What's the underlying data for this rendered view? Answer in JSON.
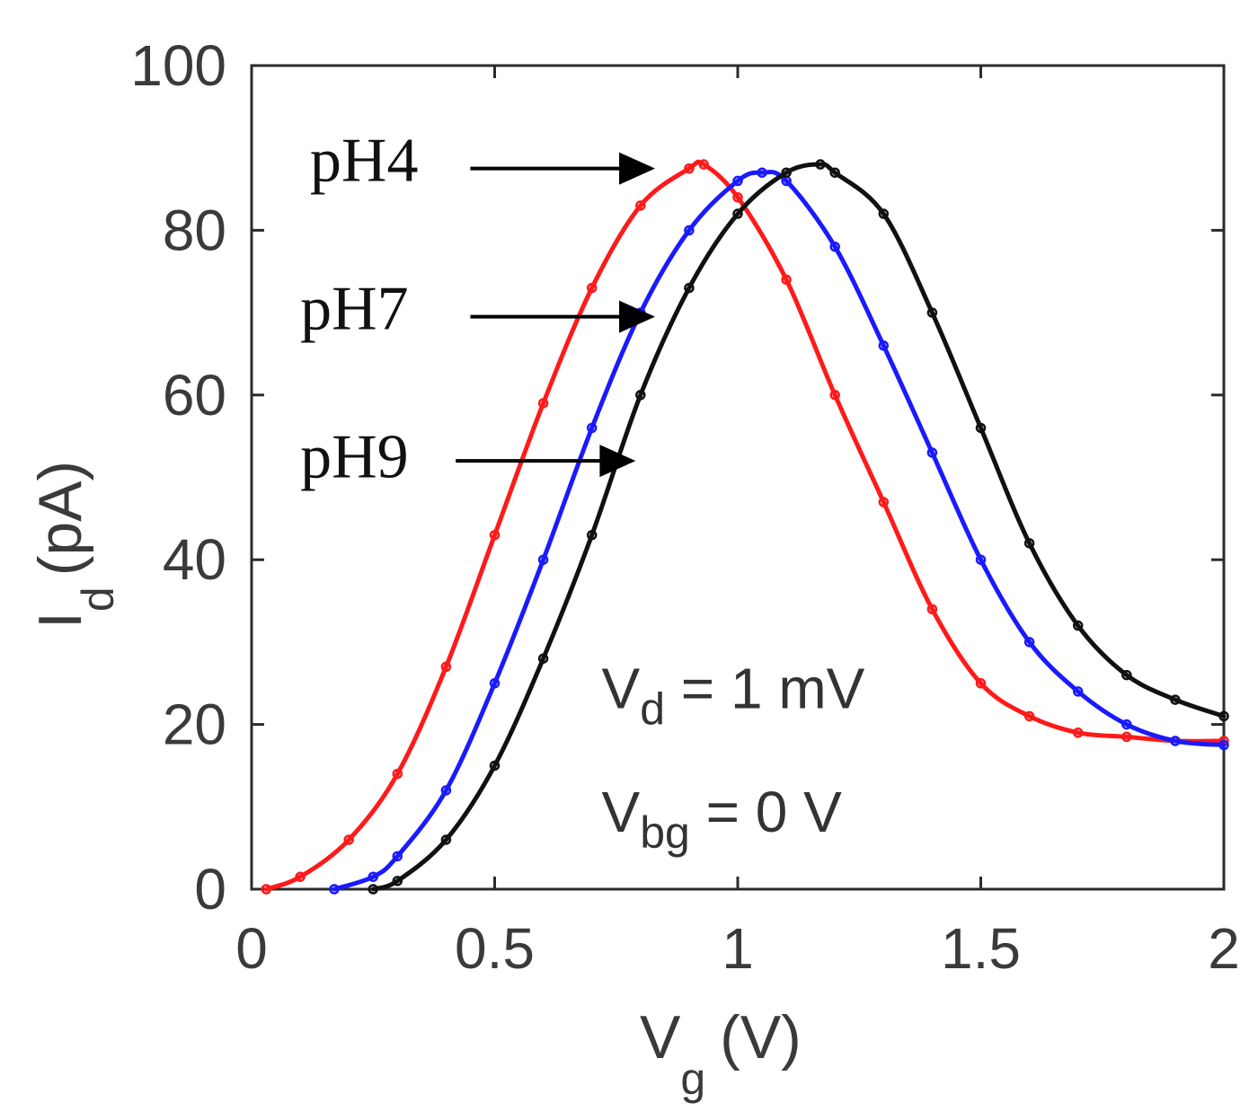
{
  "chart_data": {
    "type": "line",
    "title": "",
    "xlabel": {
      "main": "V",
      "sub": "g",
      "unit": "(V)"
    },
    "ylabel": {
      "main": "I",
      "sub": "d",
      "unit": "(pA)"
    },
    "xlim": [
      0,
      2
    ],
    "ylim": [
      0,
      100
    ],
    "x_ticks": [
      {
        "value": 0,
        "label": "0"
      },
      {
        "value": 0.5,
        "label": "0.5"
      },
      {
        "value": 1,
        "label": "1"
      },
      {
        "value": 1.5,
        "label": "1.5"
      },
      {
        "value": 2,
        "label": "2"
      }
    ],
    "y_ticks": [
      {
        "value": 0,
        "label": "0"
      },
      {
        "value": 20,
        "label": "20"
      },
      {
        "value": 40,
        "label": "40"
      },
      {
        "value": 60,
        "label": "60"
      },
      {
        "value": 80,
        "label": "80"
      },
      {
        "value": 100,
        "label": "100"
      }
    ],
    "grid": false,
    "series": [
      {
        "name": "pH4",
        "color": "#ff1a1a",
        "x": [
          0.03,
          0.1,
          0.2,
          0.3,
          0.4,
          0.5,
          0.6,
          0.7,
          0.8,
          0.9,
          0.93,
          1.0,
          1.1,
          1.2,
          1.3,
          1.4,
          1.5,
          1.6,
          1.7,
          1.8,
          1.9,
          2.0
        ],
        "y": [
          0,
          1.5,
          6,
          14,
          27,
          43,
          59,
          73,
          83,
          87.5,
          88,
          84,
          74,
          60,
          47,
          34,
          25,
          21,
          19,
          18.5,
          18,
          18
        ]
      },
      {
        "name": "pH7",
        "color": "#1a1aff",
        "x": [
          0.17,
          0.25,
          0.3,
          0.4,
          0.5,
          0.6,
          0.7,
          0.8,
          0.9,
          1.0,
          1.05,
          1.1,
          1.2,
          1.3,
          1.4,
          1.5,
          1.6,
          1.7,
          1.8,
          1.9,
          2.0
        ],
        "y": [
          0,
          1.5,
          4,
          12,
          25,
          40,
          56,
          70,
          80,
          86,
          87,
          86,
          78,
          66,
          53,
          40,
          30,
          24,
          20,
          18,
          17.5
        ]
      },
      {
        "name": "pH9",
        "color": "#111111",
        "x": [
          0.25,
          0.3,
          0.4,
          0.5,
          0.6,
          0.7,
          0.8,
          0.9,
          1.0,
          1.1,
          1.17,
          1.2,
          1.3,
          1.4,
          1.5,
          1.6,
          1.7,
          1.8,
          1.9,
          2.0
        ],
        "y": [
          0,
          1,
          6,
          15,
          28,
          43,
          60,
          73,
          82,
          87,
          88,
          87,
          82,
          70,
          56,
          42,
          32,
          26,
          23,
          21
        ]
      }
    ],
    "arrows": [
      {
        "label": "pH4",
        "label_anchor": [
          0.12,
          86
        ],
        "tail": [
          0.45,
          87.5
        ],
        "head": [
          0.83,
          87.5
        ]
      },
      {
        "label": "pH7",
        "label_anchor": [
          0.1,
          68
        ],
        "tail": [
          0.45,
          69.5
        ],
        "head": [
          0.83,
          69.5
        ]
      },
      {
        "label": "pH9",
        "label_anchor": [
          0.1,
          50
        ],
        "tail": [
          0.42,
          52
        ],
        "head": [
          0.79,
          52
        ]
      }
    ],
    "annotations": [
      {
        "main": "V",
        "sub": "d",
        "rest": " = 1 mV",
        "anchor": [
          0.72,
          22
        ]
      },
      {
        "main": "V",
        "sub": "bg",
        "rest": " = 0 V",
        "anchor": [
          0.72,
          7
        ]
      }
    ]
  }
}
